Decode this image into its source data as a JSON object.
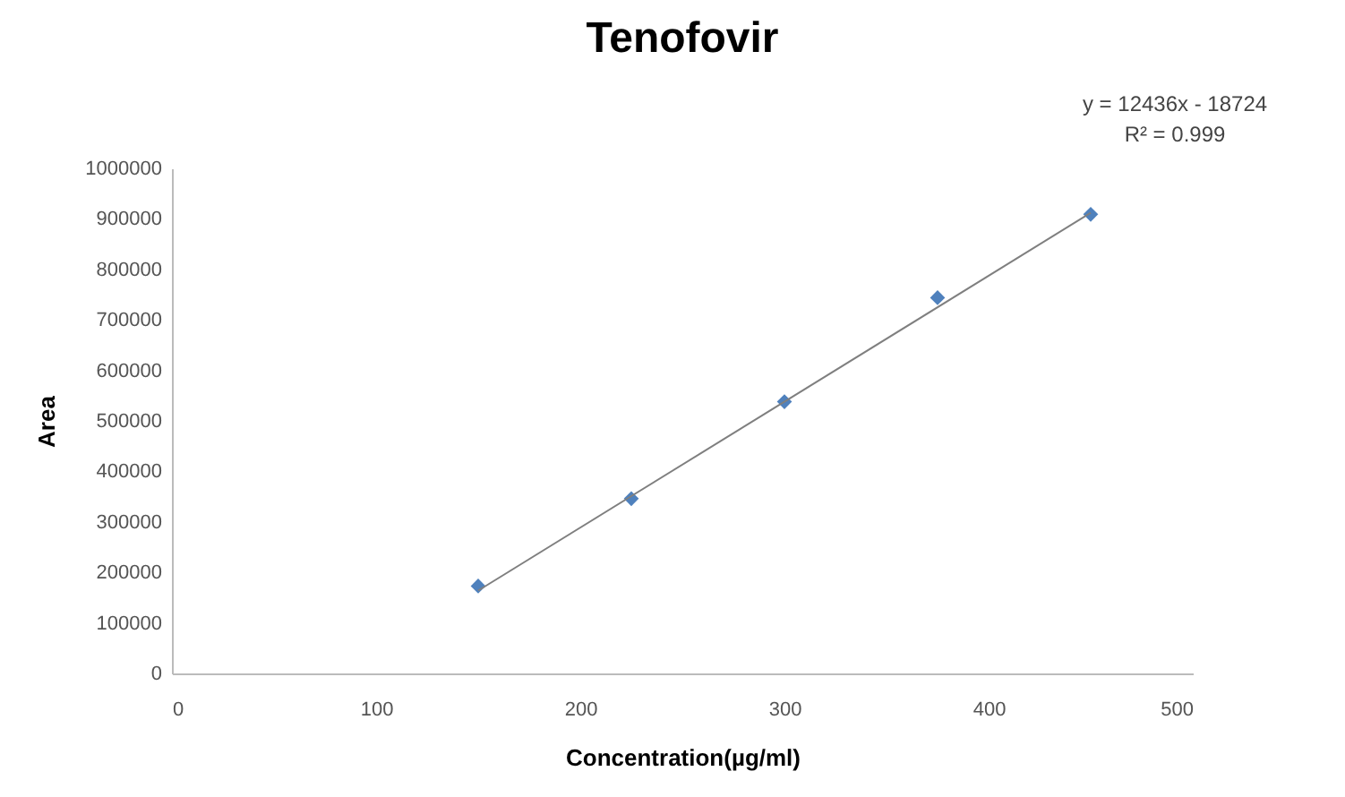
{
  "chart_data": {
    "type": "scatter",
    "title": "Tenofovir",
    "xlabel": "Concentration(µg/ml)",
    "ylabel": "Area",
    "x": [
      150,
      225,
      300,
      375,
      450
    ],
    "series": [
      {
        "color": "#4f81bd",
        "values": [
          173000,
          346000,
          538000,
          744000,
          909000
        ],
        "marker": "diamond"
      },
      {
        "type": "line",
        "color": "#7f7f7f",
        "x": [
          150,
          450
        ],
        "values": [
          164000,
          912000
        ],
        "marker": "none"
      }
    ],
    "xlim": [
      0,
      500
    ],
    "xticks": [
      0,
      100,
      200,
      300,
      400,
      500
    ],
    "ylim": [
      0,
      1000000
    ],
    "yticks": [
      0,
      100000,
      200000,
      300000,
      400000,
      500000,
      600000,
      700000,
      800000,
      900000,
      1000000
    ],
    "grid": false,
    "annotations": [
      "y = 12436x - 18724",
      "R² = 0.999"
    ]
  }
}
